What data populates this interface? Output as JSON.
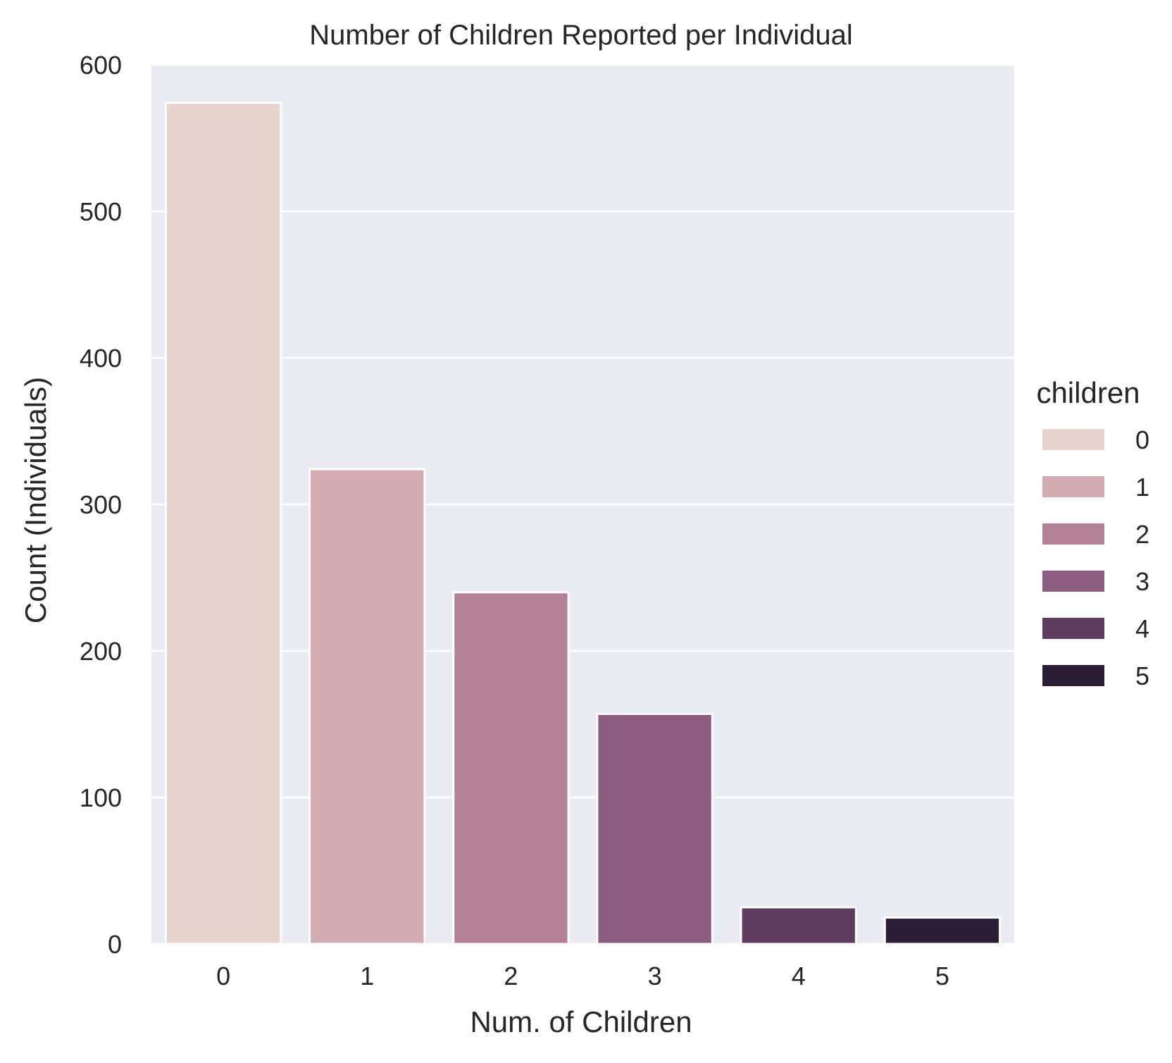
{
  "chart_data": {
    "type": "bar",
    "title": "Number of Children Reported per Individual",
    "xlabel": "Num. of Children",
    "ylabel": "Count (Individuals)",
    "categories": [
      "0",
      "1",
      "2",
      "3",
      "4",
      "5"
    ],
    "values": [
      574,
      324,
      240,
      157,
      25,
      18
    ],
    "ylim": [
      0,
      600
    ],
    "yticks": [
      0,
      100,
      200,
      300,
      400,
      500,
      600
    ],
    "grid": true,
    "legend": {
      "title": "children",
      "placement": "right",
      "entries": [
        "0",
        "1",
        "2",
        "3",
        "4",
        "5"
      ]
    },
    "colors": [
      "#e8d4cf",
      "#d4abb2",
      "#b38296",
      "#8c5d7e",
      "#5d3c5f",
      "#2d1e37"
    ],
    "background_color": "#eaeaf2"
  }
}
